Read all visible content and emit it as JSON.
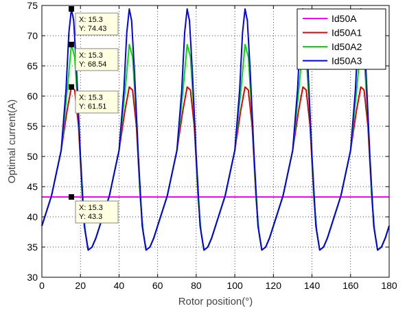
{
  "chart_data": {
    "type": "line",
    "title": "",
    "xlabel": "Rotor position(°)",
    "ylabel": "Optimal current(A)",
    "xlim": [
      0,
      180
    ],
    "ylim": [
      30,
      75
    ],
    "xticks": [
      0,
      20,
      40,
      60,
      80,
      100,
      120,
      140,
      160,
      180
    ],
    "yticks": [
      30,
      35,
      40,
      45,
      50,
      55,
      60,
      65,
      70,
      75
    ],
    "grid": true,
    "legend": "top-right",
    "period": 30,
    "series": [
      {
        "name": "Id50A",
        "color": "#ff00ff",
        "x": [
          0,
          180
        ],
        "y": [
          43.3,
          43.3
        ]
      },
      {
        "name": "Id50A1",
        "color": "#dd0000",
        "x": [
          0,
          5,
          10,
          13,
          15.3,
          17,
          19,
          21,
          22.5,
          24,
          26,
          28,
          30
        ],
        "y": [
          38.5,
          43.5,
          51.0,
          57.5,
          61.51,
          61.0,
          55.0,
          43.0,
          37.5,
          34.5,
          35.0,
          36.5,
          38.5
        ]
      },
      {
        "name": "Id50A2",
        "color": "#00dd00",
        "x": [
          0,
          5,
          10,
          13,
          15.3,
          17,
          19,
          21,
          22.5,
          24,
          26,
          28,
          30
        ],
        "y": [
          38.5,
          43.5,
          51.0,
          60.5,
          68.54,
          66.5,
          56.5,
          43.0,
          37.5,
          34.5,
          35.0,
          36.5,
          38.5
        ]
      },
      {
        "name": "Id50A3",
        "color": "#0000ee",
        "x": [
          0,
          5,
          10,
          12.5,
          14,
          15.3,
          16.5,
          18,
          20,
          22,
          24,
          26,
          28,
          30
        ],
        "y": [
          38.5,
          43.5,
          51.0,
          61.0,
          70.5,
          74.43,
          72.5,
          64.0,
          50.0,
          38.5,
          34.5,
          35.0,
          36.5,
          38.5
        ]
      }
    ],
    "datatips": [
      {
        "x_label": "X: 15.3",
        "y_label": "Y: 74.43",
        "x": 15.3,
        "y": 74.43
      },
      {
        "x_label": "X: 15.3",
        "y_label": "Y: 68.54",
        "x": 15.3,
        "y": 68.54
      },
      {
        "x_label": "X: 15.3",
        "y_label": "Y: 61.51",
        "x": 15.3,
        "y": 61.51
      },
      {
        "x_label": "X: 15.3",
        "y_label": "Y: 43.3",
        "x": 15.3,
        "y": 43.3
      }
    ]
  }
}
